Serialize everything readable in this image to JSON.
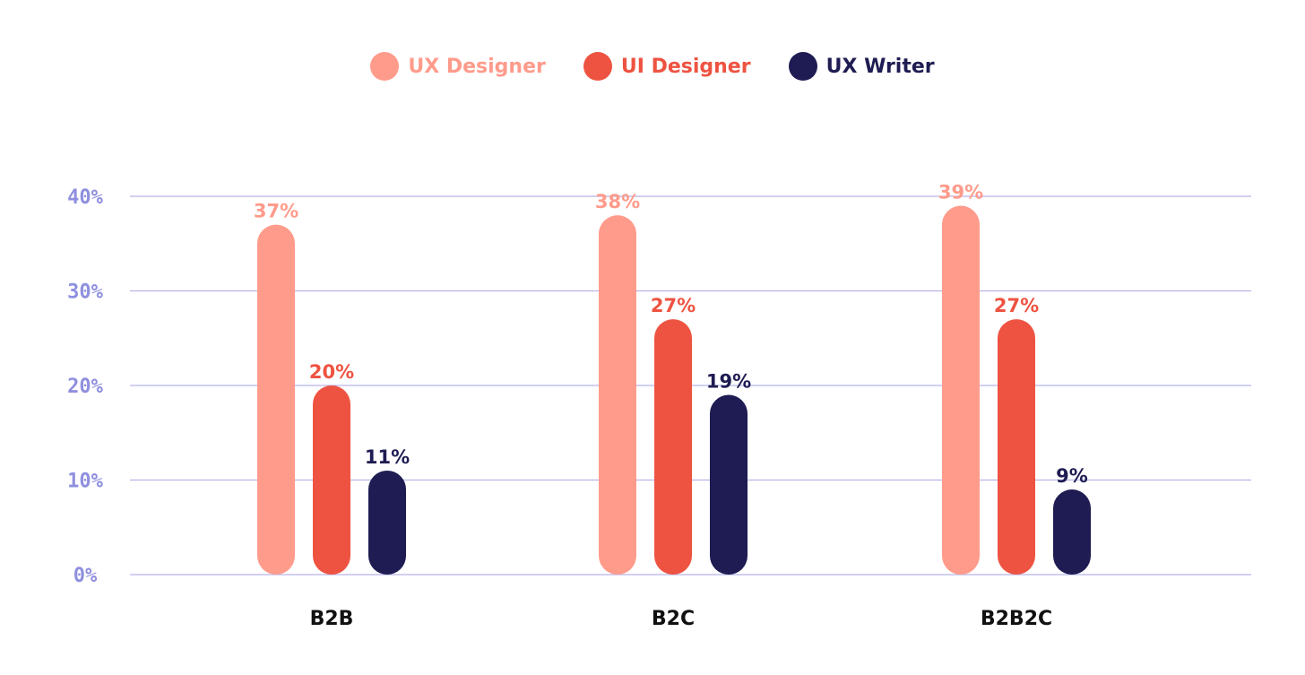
{
  "colors": {
    "ux_designer": "#FF9B8B",
    "ui_designer": "#EE5341",
    "ux_writer": "#1E1C52",
    "axis": "#8F8FDF",
    "gridline": "#B7B4E9",
    "category_text": "#111111"
  },
  "legend": [
    {
      "label": "UX Designer",
      "color": "#FF9B8B"
    },
    {
      "label": "UI Designer",
      "color": "#EE5341"
    },
    {
      "label": "UX Writer",
      "color": "#1E1C52"
    }
  ],
  "chart_data": {
    "type": "bar",
    "title": "",
    "xlabel": "",
    "ylabel": "",
    "categories": [
      "B2B",
      "B2C",
      "B2B2C"
    ],
    "series": [
      {
        "name": "UX Designer",
        "values": [
          37,
          38,
          39
        ],
        "labels": [
          "37%",
          "38%",
          "39%"
        ]
      },
      {
        "name": "UI Designer",
        "values": [
          20,
          27,
          27
        ],
        "labels": [
          "20%",
          "27%",
          "27%"
        ]
      },
      {
        "name": "UX Writer",
        "values": [
          11,
          19,
          9
        ],
        "labels": [
          "11%",
          "19%",
          "9%"
        ]
      }
    ],
    "ylim": [
      0,
      40
    ],
    "yticks": [
      0,
      10,
      20,
      30,
      40
    ],
    "ytick_labels": [
      "0%",
      "10%",
      "20%",
      "30%",
      "40%"
    ],
    "grid": true,
    "legend_position": "top-center"
  }
}
